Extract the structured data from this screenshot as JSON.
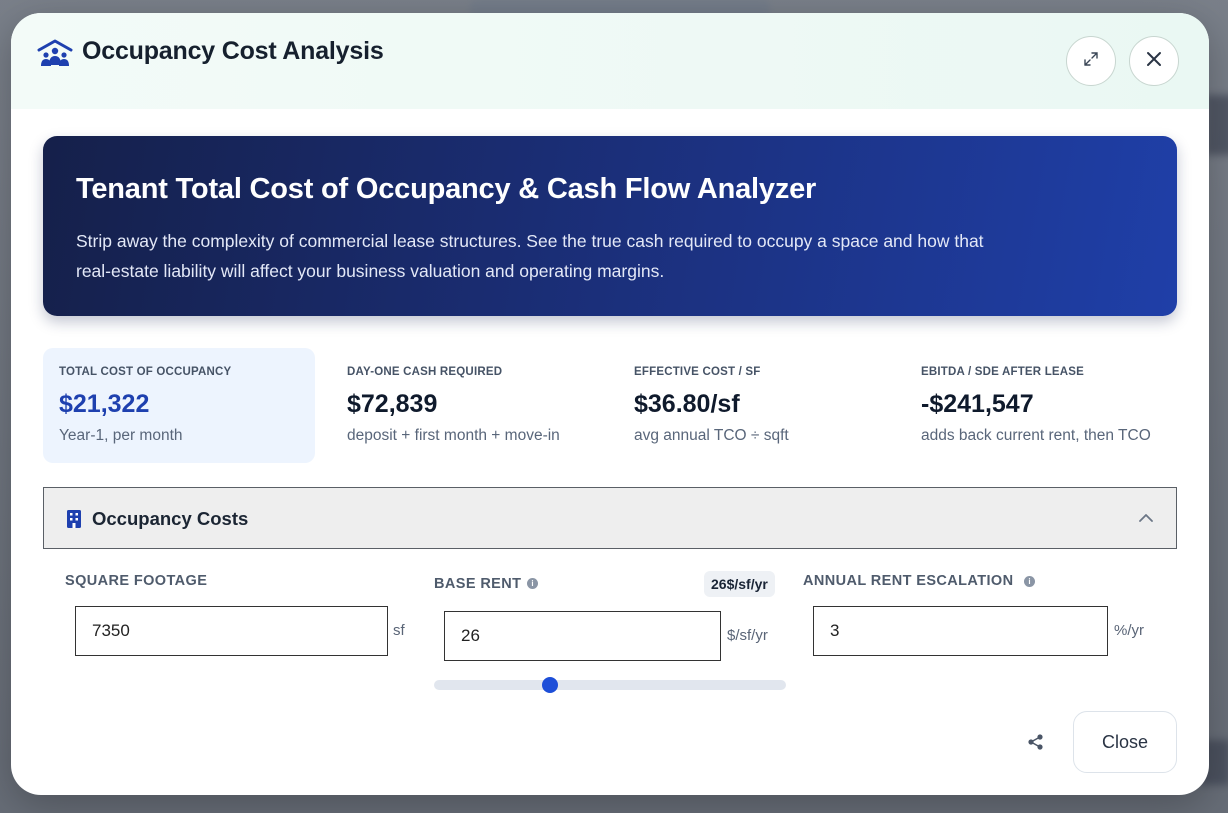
{
  "modal": {
    "title": "Occupancy Cost Analysis",
    "header_icon": "people-building-icon",
    "expand_icon": "expand-icon",
    "close_icon": "close-icon"
  },
  "hero": {
    "title": "Tenant Total Cost of Occupancy & Cash Flow Analyzer",
    "description": "Strip away the complexity of commercial lease structures. See the true cash required to occupy a space and how that real-estate liability will affect your business valuation and operating margins."
  },
  "stats": [
    {
      "label": "TOTAL COST OF OCCUPANCY",
      "value": "$21,322",
      "sub": "Year-1, per month"
    },
    {
      "label": "DAY-ONE CASH REQUIRED",
      "value": "$72,839",
      "sub": "deposit + first month + move-in"
    },
    {
      "label": "EFFECTIVE COST / SF",
      "value": "$36.80/sf",
      "sub": "avg annual TCO ÷ sqft"
    },
    {
      "label": "EBITDA / SDE AFTER LEASE",
      "value": "-$241,547",
      "sub": "adds back current rent, then TCO"
    }
  ],
  "section": {
    "title": "Occupancy Costs",
    "icon": "building-icon",
    "toggle_icon": "chevron-up-icon"
  },
  "fields": {
    "square_footage": {
      "label": "SQUARE FOOTAGE",
      "value": "7350",
      "unit": "sf"
    },
    "base_rent": {
      "label": "BASE RENT",
      "value": "26",
      "unit": "$/sf/yr",
      "badge": "26$/sf/yr",
      "slider_fraction": 0.33
    },
    "escalation": {
      "label": "ANNUAL RENT ESCALATION",
      "value": "3",
      "unit": "%/yr"
    }
  },
  "footer": {
    "share_icon": "share-icon",
    "close_label": "Close"
  },
  "colors": {
    "accent": "#1d4ed8",
    "hero_start": "#15204a",
    "hero_end": "#1f3fa8"
  }
}
